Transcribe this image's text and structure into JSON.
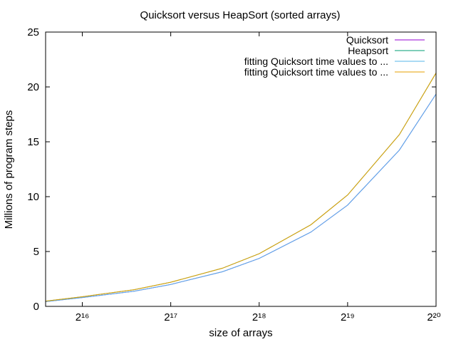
{
  "chart_data": {
    "type": "line",
    "title": "Quicksort versus HeapSort (sorted arrays)",
    "xlabel": "size of arrays",
    "ylabel": "Millions of program steps",
    "x_scale": "log2",
    "xlim": [
      49152,
      1048576
    ],
    "ylim": [
      0,
      25
    ],
    "grid": false,
    "legend_position": "top-right",
    "y_ticks": [
      0,
      5,
      10,
      15,
      20,
      25
    ],
    "y_tick_labels": [
      "0",
      "5",
      "10",
      "15",
      "20",
      "25"
    ],
    "x_ticks": [
      65536,
      131072,
      262144,
      524288,
      1048576
    ],
    "x_tick_labels": [
      "2¹⁶",
      "2¹⁷",
      "2¹⁸",
      "2¹⁹",
      "2²⁰"
    ],
    "x": [
      49152,
      65536,
      98304,
      131072,
      196608,
      262144,
      393216,
      524288,
      786432,
      1048576
    ],
    "series": [
      {
        "name": "Quicksort",
        "color": "#9400d3",
        "values": [
          0.43,
          0.8,
          1.38,
          2.0,
          3.16,
          4.37,
          6.77,
          9.23,
          14.24,
          19.35
        ]
      },
      {
        "name": "Heapsort",
        "color": "#009e73",
        "values": [
          0.48,
          0.88,
          1.52,
          2.2,
          3.48,
          4.8,
          7.44,
          10.15,
          15.65,
          21.27
        ]
      },
      {
        "name": "fitting Quicksort time values to ...",
        "color": "#56b4e9",
        "values": [
          0.43,
          0.8,
          1.38,
          2.0,
          3.16,
          4.37,
          6.77,
          9.23,
          14.24,
          19.35
        ]
      },
      {
        "name": "fitting Quicksort time values to ...",
        "color": "#e69f00",
        "values": [
          0.48,
          0.88,
          1.52,
          2.2,
          3.48,
          4.8,
          7.44,
          10.15,
          15.65,
          21.27
        ]
      }
    ]
  }
}
